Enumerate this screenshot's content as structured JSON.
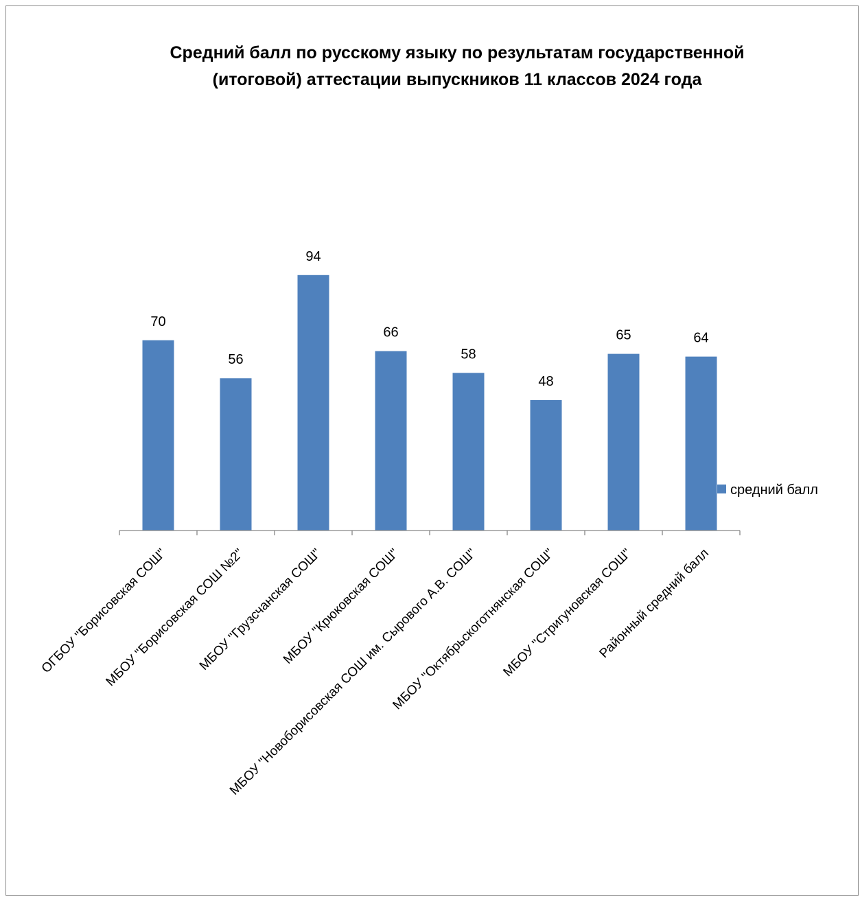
{
  "chart_data": {
    "type": "bar",
    "title": "Средний балл по русскому языку по результатам государственной (итоговой) аттестации выпускников 11 классов 2024 года",
    "title_lines": [
      "Средний балл по русскому языку по результатам государственной",
      "(итоговой) аттестации выпускников 11 классов 2024 года"
    ],
    "categories": [
      "ОГБОУ \"Борисовская СОШ\"",
      "МБОУ \"Борисовская СОШ №2\"",
      "МБОУ \"Грузсчанская СОШ\"",
      "МБОУ \"Крюковская СОШ\"",
      "МБОУ \"Новоборисовская СОШ им. Сырового А.В. СОШ\"",
      "МБОУ \"Октябрьскоготнянская СОШ\"",
      "МБОУ \"Стригуновская СОШ\"",
      "Районный средний балл"
    ],
    "series": [
      {
        "name": "средний балл",
        "values": [
          70,
          56,
          94,
          66,
          58,
          48,
          65,
          64
        ],
        "color": "#4f81bd"
      }
    ],
    "data_labels": true,
    "legend_position": "right",
    "ylim": [
      0,
      100
    ],
    "grid": false,
    "xlabel": "",
    "ylabel": ""
  }
}
